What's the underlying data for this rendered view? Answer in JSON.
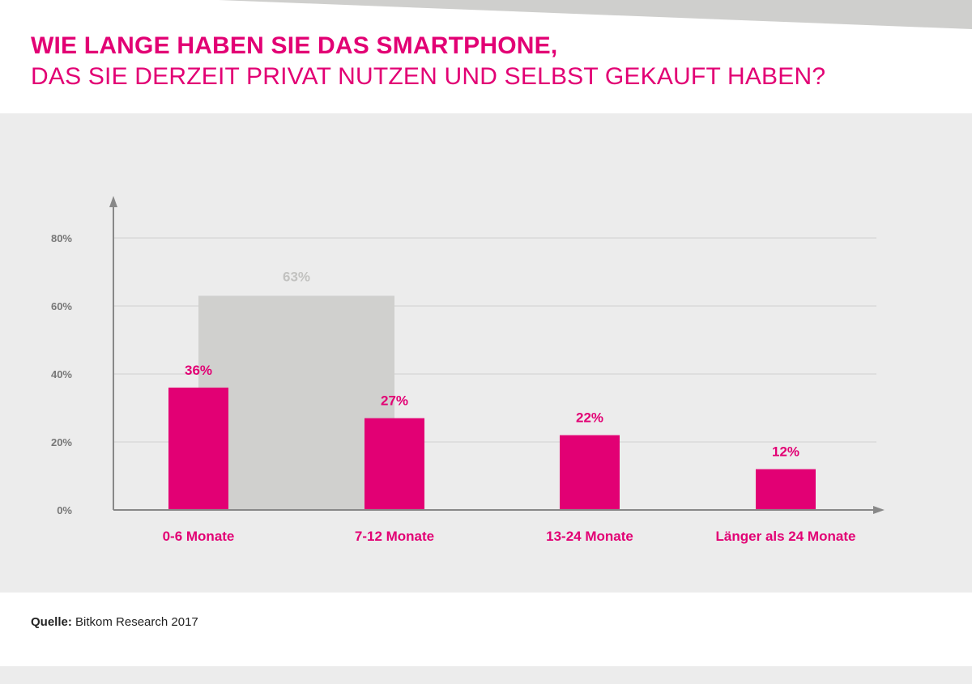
{
  "title": {
    "line1": "WIE LANGE HABEN SIE DAS SMARTPHONE,",
    "line2": "DAS SIE DERZEIT PRIVAT NUTZEN UND SELBST GEKAUFT HABEN?"
  },
  "source": {
    "label": "Quelle:",
    "text": "Bitkom Research 2017"
  },
  "colors": {
    "accent": "#e20074",
    "group_bar": "#d0d0ce",
    "group_label": "#c2c2c0",
    "axis": "#888888",
    "grid": "#cfcfcf",
    "tick_label": "#777777"
  },
  "chart_data": {
    "type": "bar",
    "categories": [
      "0-6 Monate",
      "7-12 Monate",
      "13-24 Monate",
      "Länger als 24 Monate"
    ],
    "values": [
      36,
      27,
      22,
      12
    ],
    "value_labels": [
      "36%",
      "27%",
      "22%",
      "12%"
    ],
    "group_total": {
      "value": 63,
      "label": "63%",
      "spans_categories": [
        0,
        1
      ]
    },
    "yticks": [
      0,
      20,
      40,
      60,
      80
    ],
    "ytick_labels": [
      "0%",
      "20%",
      "40%",
      "60%",
      "80%"
    ],
    "ylim": [
      0,
      80
    ],
    "grid": true,
    "xlabel": "",
    "ylabel": ""
  }
}
